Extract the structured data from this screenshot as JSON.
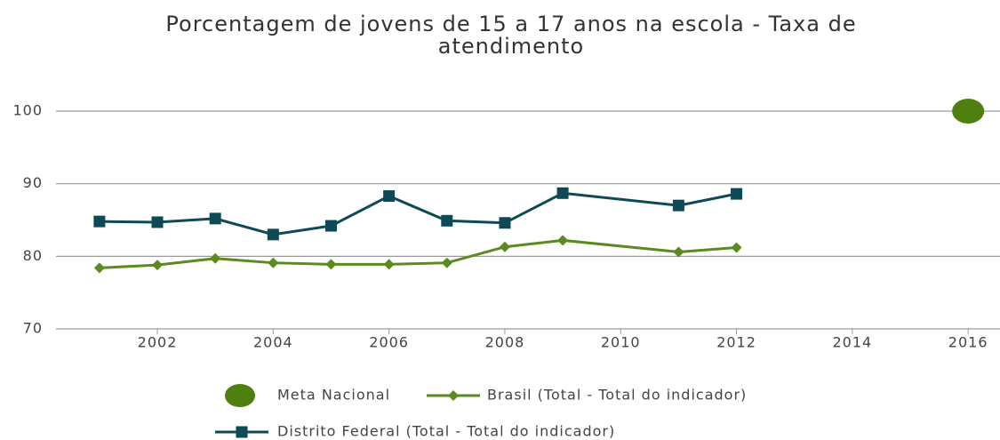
{
  "chart_data": {
    "type": "line",
    "title": [
      "Porcentagem de jovens de 15 a 17 anos na escola - Taxa de",
      "atendimento"
    ],
    "xlim": [
      2000.25,
      2016.55
    ],
    "xticks": [
      2002,
      2004,
      2006,
      2008,
      2010,
      2012,
      2014,
      2016
    ],
    "ylim": [
      70,
      102.5
    ],
    "yticks": [
      70,
      80,
      90,
      100
    ],
    "grid": true,
    "legend": "bottom",
    "series": [
      {
        "name": "Meta Nacional",
        "color": "#4f7f0f",
        "marker": "circle",
        "line": false,
        "x": [
          2016
        ],
        "values": [
          100
        ]
      },
      {
        "name": "Brasil (Total - Total do indicador)",
        "color": "#5b8a1e",
        "marker": "diamond",
        "line": true,
        "x": [
          2001,
          2002,
          2003,
          2004,
          2005,
          2006,
          2007,
          2008,
          2009,
          2011,
          2012
        ],
        "values": [
          78.4,
          78.8,
          79.7,
          79.1,
          78.9,
          78.9,
          79.1,
          81.3,
          82.2,
          80.6,
          81.2
        ]
      },
      {
        "name": "Distrito Federal (Total - Total do indicador)",
        "color": "#0e4a55",
        "marker": "square",
        "line": true,
        "x": [
          2001,
          2002,
          2003,
          2004,
          2005,
          2006,
          2007,
          2008,
          2009,
          2011,
          2012
        ],
        "values": [
          84.8,
          84.7,
          85.2,
          83.0,
          84.2,
          88.3,
          84.9,
          84.6,
          88.7,
          87.0,
          88.6
        ]
      }
    ]
  }
}
